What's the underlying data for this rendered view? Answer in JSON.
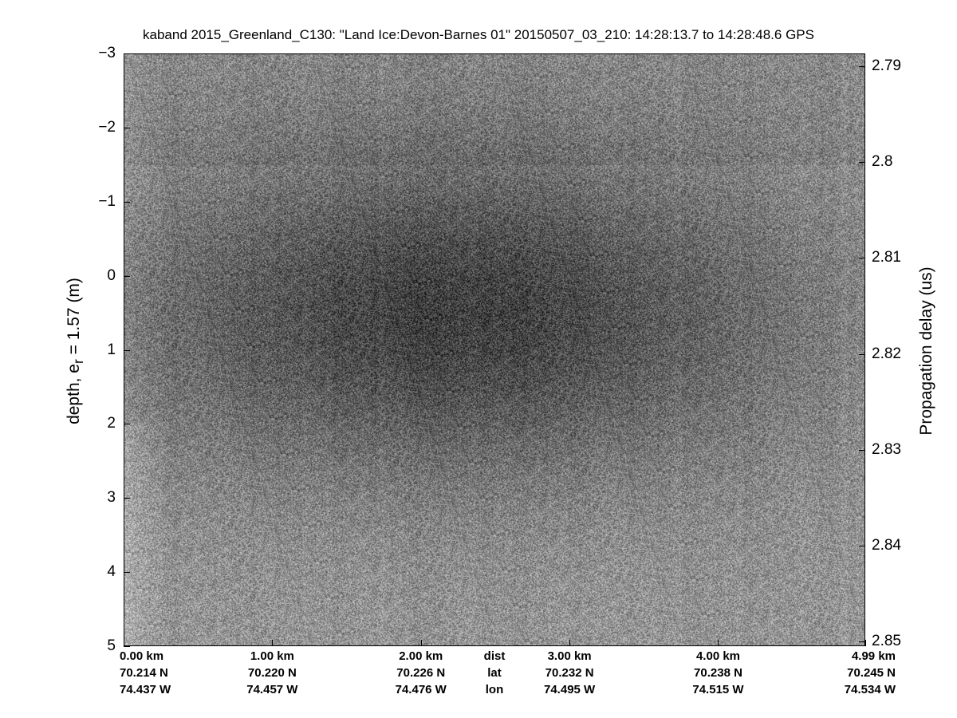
{
  "chart_data": {
    "type": "heatmap",
    "title": "kaband 2015_Greenland_C130: \"Land Ice:Devon-Barnes 01\"  20150507_03_210: 14:28:13.7 to 14:28:48.6 GPS",
    "colormap": "gray",
    "ylabel_left": "depth, e",
    "ylabel_left_sub": "r",
    "ylabel_left_rest": " = 1.57 (m)",
    "ylim_left": [
      -3,
      5
    ],
    "yticks_left": [
      "-3",
      "-2",
      "-1",
      "0",
      "1",
      "2",
      "3",
      "4",
      "5"
    ],
    "ylabel_right": "Propagation delay (us)",
    "ylim_right": [
      2.79,
      2.85
    ],
    "yticks_right": [
      "2.79",
      "2.8",
      "2.81",
      "2.82",
      "2.83",
      "2.84",
      "2.85"
    ],
    "xlim_km": [
      0,
      4.99
    ],
    "x_rows": [
      {
        "label": "dist",
        "values": [
          "0.00 km",
          "1.00 km",
          "2.00 km",
          "3.00 km",
          "4.00 km",
          "4.99 km"
        ]
      },
      {
        "label": "lat",
        "values": [
          "70.214 N",
          "70.220 N",
          "70.226 N",
          "70.232 N",
          "70.238 N",
          "70.245 N"
        ]
      },
      {
        "label": "lon",
        "values": [
          "74.437 W",
          "74.457 W",
          "74.476 W",
          "74.495 W",
          "74.515 W",
          "74.534 W"
        ]
      }
    ],
    "x_tick_km": [
      0,
      1,
      2,
      3,
      4,
      4.99
    ],
    "description_dark_band_depth_m": [
      -1.5,
      2.5
    ]
  }
}
